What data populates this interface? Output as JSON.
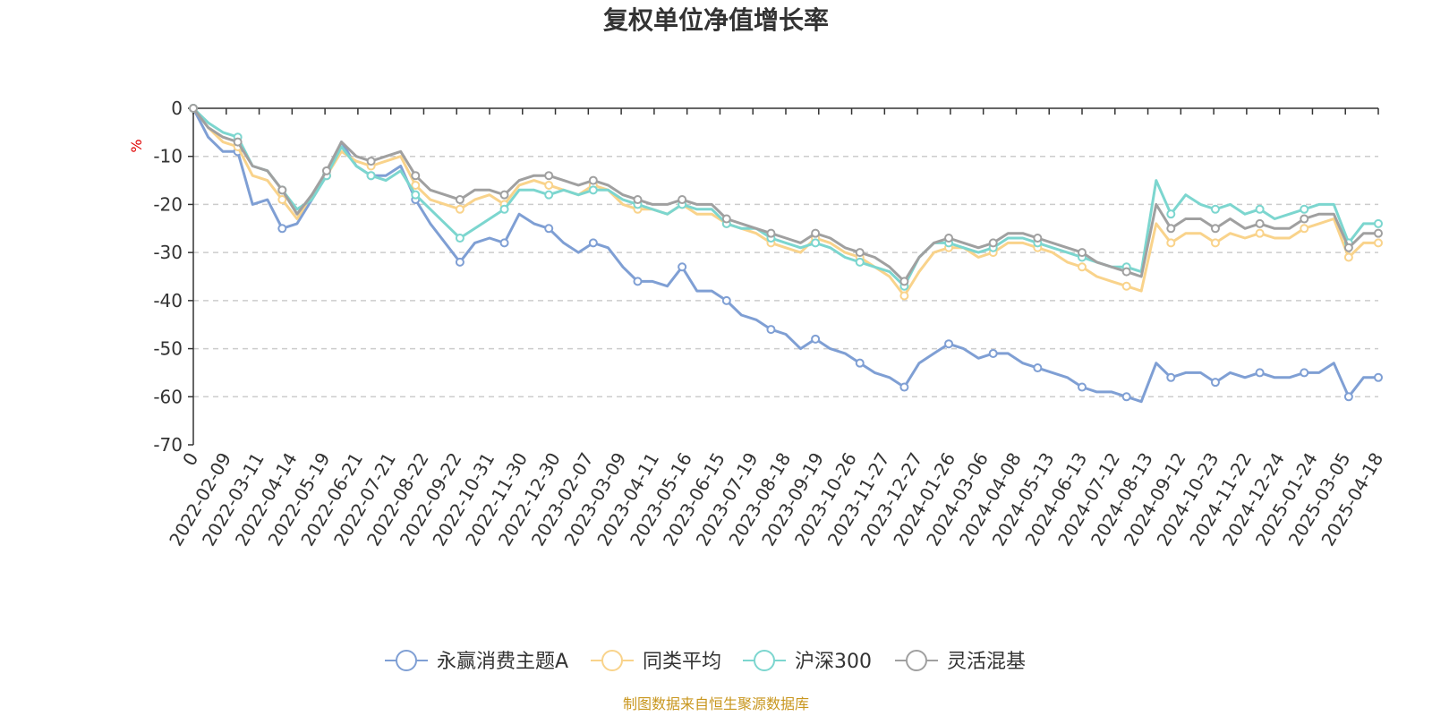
{
  "chart_data": {
    "type": "line",
    "title": "复权单位净值增长率",
    "ylabel": "%",
    "ylim": [
      -70,
      0
    ],
    "y_ticks": [
      0,
      -10,
      -20,
      -30,
      -40,
      -50,
      -60,
      -70
    ],
    "x_tick_labels": [
      "0",
      "2022-02-09",
      "2022-03-11",
      "2022-04-14",
      "2022-05-19",
      "2022-06-21",
      "2022-07-21",
      "2022-08-22",
      "2022-09-22",
      "2022-10-31",
      "2022-11-30",
      "2022-12-30",
      "2023-02-07",
      "2023-03-09",
      "2023-04-11",
      "2023-05-16",
      "2023-06-15",
      "2023-07-19",
      "2023-08-18",
      "2023-09-19",
      "2023-10-26",
      "2023-11-27",
      "2023-12-27",
      "2024-01-26",
      "2024-03-06",
      "2024-04-08",
      "2024-05-13",
      "2024-06-13",
      "2024-07-12",
      "2024-08-13",
      "2024-09-12",
      "2024-10-23",
      "2024-11-22",
      "2024-12-24",
      "2025-01-24",
      "2025-03-05",
      "2025-04-18"
    ],
    "grid": true,
    "legend_position": "bottom",
    "series": [
      {
        "name": "永赢消费主题A",
        "color": "#7f9fd4",
        "values": [
          0,
          -6,
          -9,
          -9,
          -20,
          -19,
          -25,
          -24,
          -19,
          -14,
          -7,
          -12,
          -14,
          -14,
          -12,
          -19,
          -24,
          -28,
          -32,
          -28,
          -27,
          -28,
          -22,
          -24,
          -25,
          -28,
          -30,
          -28,
          -29,
          -33,
          -36,
          -36,
          -37,
          -33,
          -38,
          -38,
          -40,
          -43,
          -44,
          -46,
          -47,
          -50,
          -48,
          -50,
          -51,
          -53,
          -55,
          -56,
          -58,
          -53,
          -51,
          -49,
          -50,
          -52,
          -51,
          -51,
          -53,
          -54,
          -55,
          -56,
          -58,
          -59,
          -59,
          -60,
          -61,
          -53,
          -56,
          -55,
          -55,
          -57,
          -55,
          -56,
          -55,
          -56,
          -56,
          -55,
          -55,
          -53,
          -60,
          -56,
          -56
        ]
      },
      {
        "name": "同类平均",
        "color": "#f9d38b",
        "values": [
          0,
          -4,
          -7,
          -8,
          -14,
          -15,
          -19,
          -23,
          -18,
          -14,
          -9,
          -11,
          -12,
          -11,
          -10,
          -16,
          -19,
          -20,
          -21,
          -19,
          -18,
          -20,
          -16,
          -15,
          -16,
          -17,
          -18,
          -16,
          -17,
          -20,
          -21,
          -21,
          -22,
          -20,
          -22,
          -22,
          -24,
          -25,
          -26,
          -28,
          -29,
          -30,
          -27,
          -28,
          -30,
          -31,
          -33,
          -35,
          -39,
          -34,
          -30,
          -29,
          -29,
          -31,
          -30,
          -28,
          -28,
          -29,
          -30,
          -32,
          -33,
          -35,
          -36,
          -37,
          -38,
          -24,
          -28,
          -26,
          -26,
          -28,
          -26,
          -27,
          -26,
          -27,
          -27,
          -25,
          -24,
          -23,
          -31,
          -28,
          -28
        ]
      },
      {
        "name": "沪深300",
        "color": "#7cd6cf",
        "values": [
          0,
          -3,
          -5,
          -6,
          -12,
          -13,
          -17,
          -21,
          -19,
          -14,
          -8,
          -12,
          -14,
          -15,
          -13,
          -18,
          -21,
          -24,
          -27,
          -25,
          -23,
          -21,
          -17,
          -17,
          -18,
          -17,
          -18,
          -17,
          -17,
          -19,
          -20,
          -21,
          -22,
          -20,
          -21,
          -21,
          -24,
          -25,
          -25,
          -27,
          -28,
          -29,
          -28,
          -29,
          -31,
          -32,
          -33,
          -34,
          -37,
          -31,
          -28,
          -28,
          -29,
          -30,
          -29,
          -27,
          -27,
          -28,
          -29,
          -30,
          -31,
          -32,
          -33,
          -33,
          -34,
          -15,
          -22,
          -18,
          -20,
          -21,
          -20,
          -22,
          -21,
          -23,
          -22,
          -21,
          -20,
          -20,
          -28,
          -24,
          -24
        ]
      },
      {
        "name": "灵活混基",
        "color": "#a0a0a0",
        "values": [
          0,
          -4,
          -6,
          -7,
          -12,
          -13,
          -17,
          -22,
          -18,
          -13,
          -7,
          -10,
          -11,
          -10,
          -9,
          -14,
          -17,
          -18,
          -19,
          -17,
          -17,
          -18,
          -15,
          -14,
          -14,
          -15,
          -16,
          -15,
          -16,
          -18,
          -19,
          -20,
          -20,
          -19,
          -20,
          -20,
          -23,
          -24,
          -25,
          -26,
          -27,
          -28,
          -26,
          -27,
          -29,
          -30,
          -31,
          -33,
          -36,
          -31,
          -28,
          -27,
          -28,
          -29,
          -28,
          -26,
          -26,
          -27,
          -28,
          -29,
          -30,
          -32,
          -33,
          -34,
          -35,
          -20,
          -25,
          -23,
          -23,
          -25,
          -23,
          -25,
          -24,
          -25,
          -25,
          -23,
          -22,
          -22,
          -29,
          -26,
          -26
        ]
      }
    ]
  },
  "footer": {
    "source": "制图数据来自恒生聚源数据库"
  }
}
